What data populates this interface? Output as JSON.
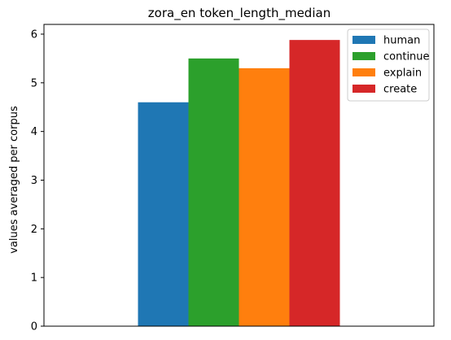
{
  "chart_data": {
    "type": "bar",
    "title": "zora_en token_length_median",
    "xlabel": "",
    "ylabel": "values averaged per corpus",
    "ylim": [
      0,
      6.2
    ],
    "yticks": [
      0,
      1,
      2,
      3,
      4,
      5,
      6
    ],
    "grid": false,
    "legend_position": "top-right",
    "series": [
      {
        "name": "human",
        "values": [
          4.6
        ],
        "color": "#1f77b4"
      },
      {
        "name": "continue",
        "values": [
          5.5
        ],
        "color": "#2ca02c"
      },
      {
        "name": "explain",
        "values": [
          5.3
        ],
        "color": "#ff7f0e"
      },
      {
        "name": "create",
        "values": [
          5.88
        ],
        "color": "#d62728"
      }
    ]
  }
}
